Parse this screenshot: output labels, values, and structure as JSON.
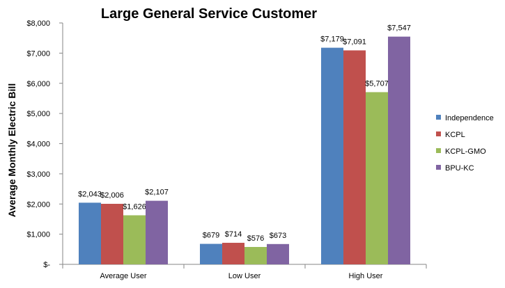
{
  "chart_data": {
    "type": "bar",
    "title": "Large General Service Customer",
    "xlabel": "",
    "ylabel": "Average Monthly Electric Bill",
    "categories": [
      "Average User",
      "Low User",
      "High User"
    ],
    "ylim": [
      0,
      8000
    ],
    "yticks": [
      0,
      1000,
      2000,
      3000,
      4000,
      5000,
      6000,
      7000,
      8000
    ],
    "ytick_labels": [
      "$-",
      "$1,000",
      "$2,000",
      "$3,000",
      "$4,000",
      "$5,000",
      "$6,000",
      "$7,000",
      "$8,000"
    ],
    "grid": false,
    "legend_position": "right",
    "series": [
      {
        "name": "Independence",
        "color": "#4F81BD",
        "values": [
          2043,
          679,
          7179
        ],
        "labels": [
          "$2,043",
          "$679",
          "$7,179"
        ]
      },
      {
        "name": "KCPL",
        "color": "#C0504D",
        "values": [
          2006,
          714,
          7091
        ],
        "labels": [
          "$2,006",
          "$714",
          "$7,091"
        ]
      },
      {
        "name": "KCPL-GMO",
        "color": "#9BBB59",
        "values": [
          1626,
          576,
          5707
        ],
        "labels": [
          "$1,626",
          "$576",
          "$5,707"
        ]
      },
      {
        "name": "BPU-KC",
        "color": "#8064A2",
        "values": [
          2107,
          673,
          7547
        ],
        "labels": [
          "$2,107",
          "$673",
          "$7,547"
        ]
      }
    ]
  }
}
